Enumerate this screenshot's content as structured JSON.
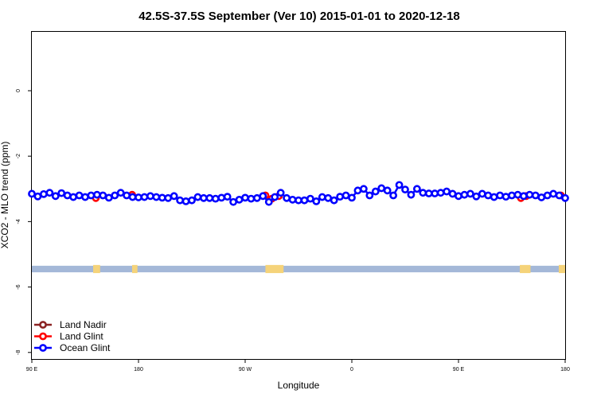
{
  "chart_data": {
    "type": "line",
    "title": "42.5S-37.5S September (Ver 10)   2015-01-01 to 2020-12-18",
    "xlabel": "Longitude",
    "ylabel": "XCO2 - MLO trend (ppm)",
    "xlim": [
      0,
      100
    ],
    "ylim": [
      -8.2,
      1.8
    ],
    "xticks": [
      {
        "pos": 0,
        "label": "90 E"
      },
      {
        "pos": 20,
        "label": "180"
      },
      {
        "pos": 40,
        "label": "90 W"
      },
      {
        "pos": 60,
        "label": "0"
      },
      {
        "pos": 80,
        "label": "90 E"
      },
      {
        "pos": 100,
        "label": "180"
      }
    ],
    "yticks": [
      0,
      -2,
      -4,
      -6,
      -8
    ],
    "legend": {
      "position": "bottom-left",
      "entries": [
        {
          "name": "Land Nadir",
          "color": "#8b2323"
        },
        {
          "name": "Land Glint",
          "color": "#ff0000"
        },
        {
          "name": "Ocean Glint",
          "color": "#0000ff"
        }
      ]
    },
    "band": {
      "y_top": -5.35,
      "y_bottom": -5.55,
      "color": "#a4b8d8",
      "land_color": "#f5d37a",
      "land_segments": [
        [
          11.5,
          12.8
        ],
        [
          18.8,
          19.8
        ],
        [
          43.8,
          47.2
        ],
        [
          91.5,
          93.5
        ],
        [
          98.8,
          100
        ]
      ]
    },
    "series": [
      {
        "name": "Land Glint",
        "color": "#ff0000",
        "points": [
          [
            12,
            -3.28
          ],
          [
            18.8,
            -3.18
          ],
          [
            43.8,
            -3.2
          ],
          [
            45,
            -3.3
          ],
          [
            46.3,
            -3.22
          ],
          [
            91.7,
            -3.28
          ],
          [
            92.7,
            -3.22
          ],
          [
            99.2,
            -3.2
          ]
        ]
      },
      {
        "name": "Ocean Glint",
        "color": "#0000ff",
        "values": [
          -3.15,
          -3.23,
          -3.16,
          -3.12,
          -3.22,
          -3.13,
          -3.2,
          -3.25,
          -3.2,
          -3.25,
          -3.2,
          -3.18,
          -3.2,
          -3.27,
          -3.2,
          -3.12,
          -3.2,
          -3.25,
          -3.26,
          -3.25,
          -3.22,
          -3.25,
          -3.27,
          -3.28,
          -3.22,
          -3.35,
          -3.38,
          -3.35,
          -3.25,
          -3.28,
          -3.28,
          -3.3,
          -3.27,
          -3.24,
          -3.4,
          -3.33,
          -3.27,
          -3.3,
          -3.28,
          -3.22,
          -3.4,
          -3.25,
          -3.12,
          -3.28,
          -3.33,
          -3.35,
          -3.35,
          -3.3,
          -3.38,
          -3.25,
          -3.28,
          -3.35,
          -3.24,
          -3.2,
          -3.27,
          -3.05,
          -3.0,
          -3.2,
          -3.08,
          -2.98,
          -3.05,
          -3.2,
          -2.88,
          -3.02,
          -3.18,
          -3.0,
          -3.12,
          -3.14,
          -3.14,
          -3.12,
          -3.08,
          -3.15,
          -3.22,
          -3.18,
          -3.15,
          -3.23,
          -3.15,
          -3.2,
          -3.25,
          -3.2,
          -3.24,
          -3.2,
          -3.18,
          -3.22,
          -3.18,
          -3.2,
          -3.26,
          -3.2,
          -3.15,
          -3.2,
          -3.28
        ]
      }
    ]
  }
}
